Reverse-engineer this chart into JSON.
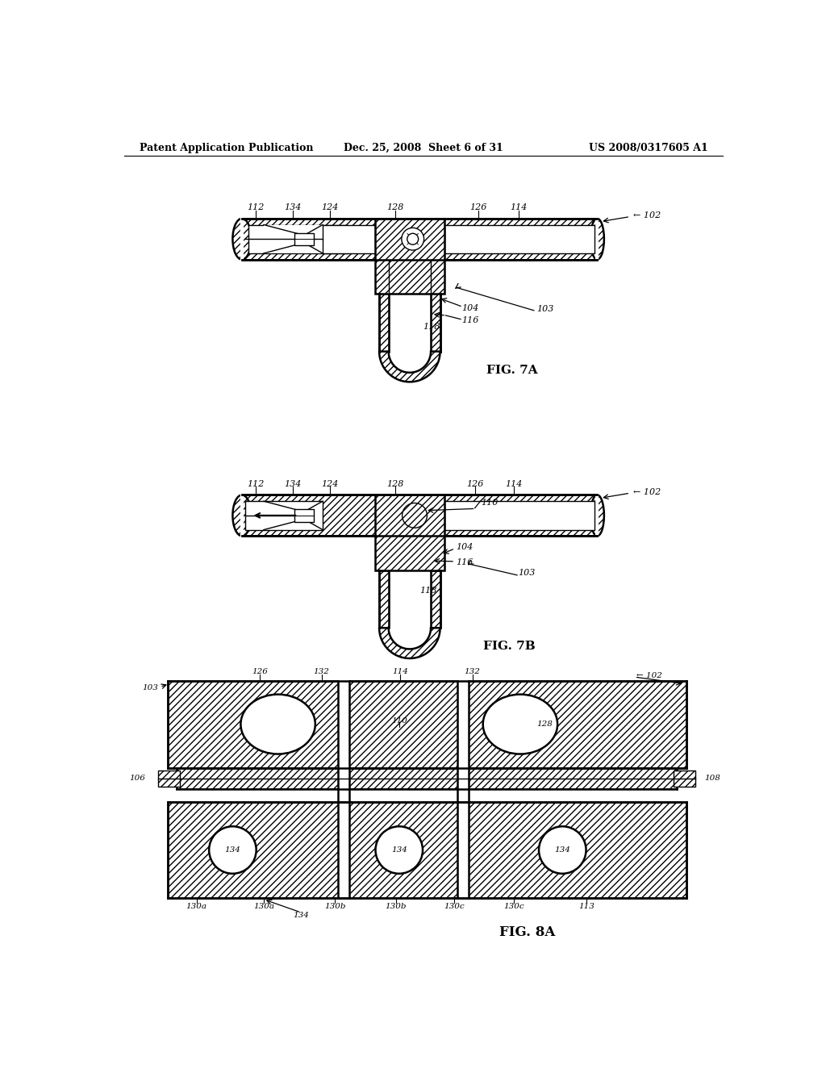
{
  "header_left": "Patent Application Publication",
  "header_mid": "Dec. 25, 2008  Sheet 6 of 31",
  "header_right": "US 2008/0317605 A1",
  "fig7a_label": "FIG. 7A",
  "fig7b_label": "FIG. 7B",
  "fig8a_label": "FIG. 8A",
  "bg_color": "#ffffff"
}
